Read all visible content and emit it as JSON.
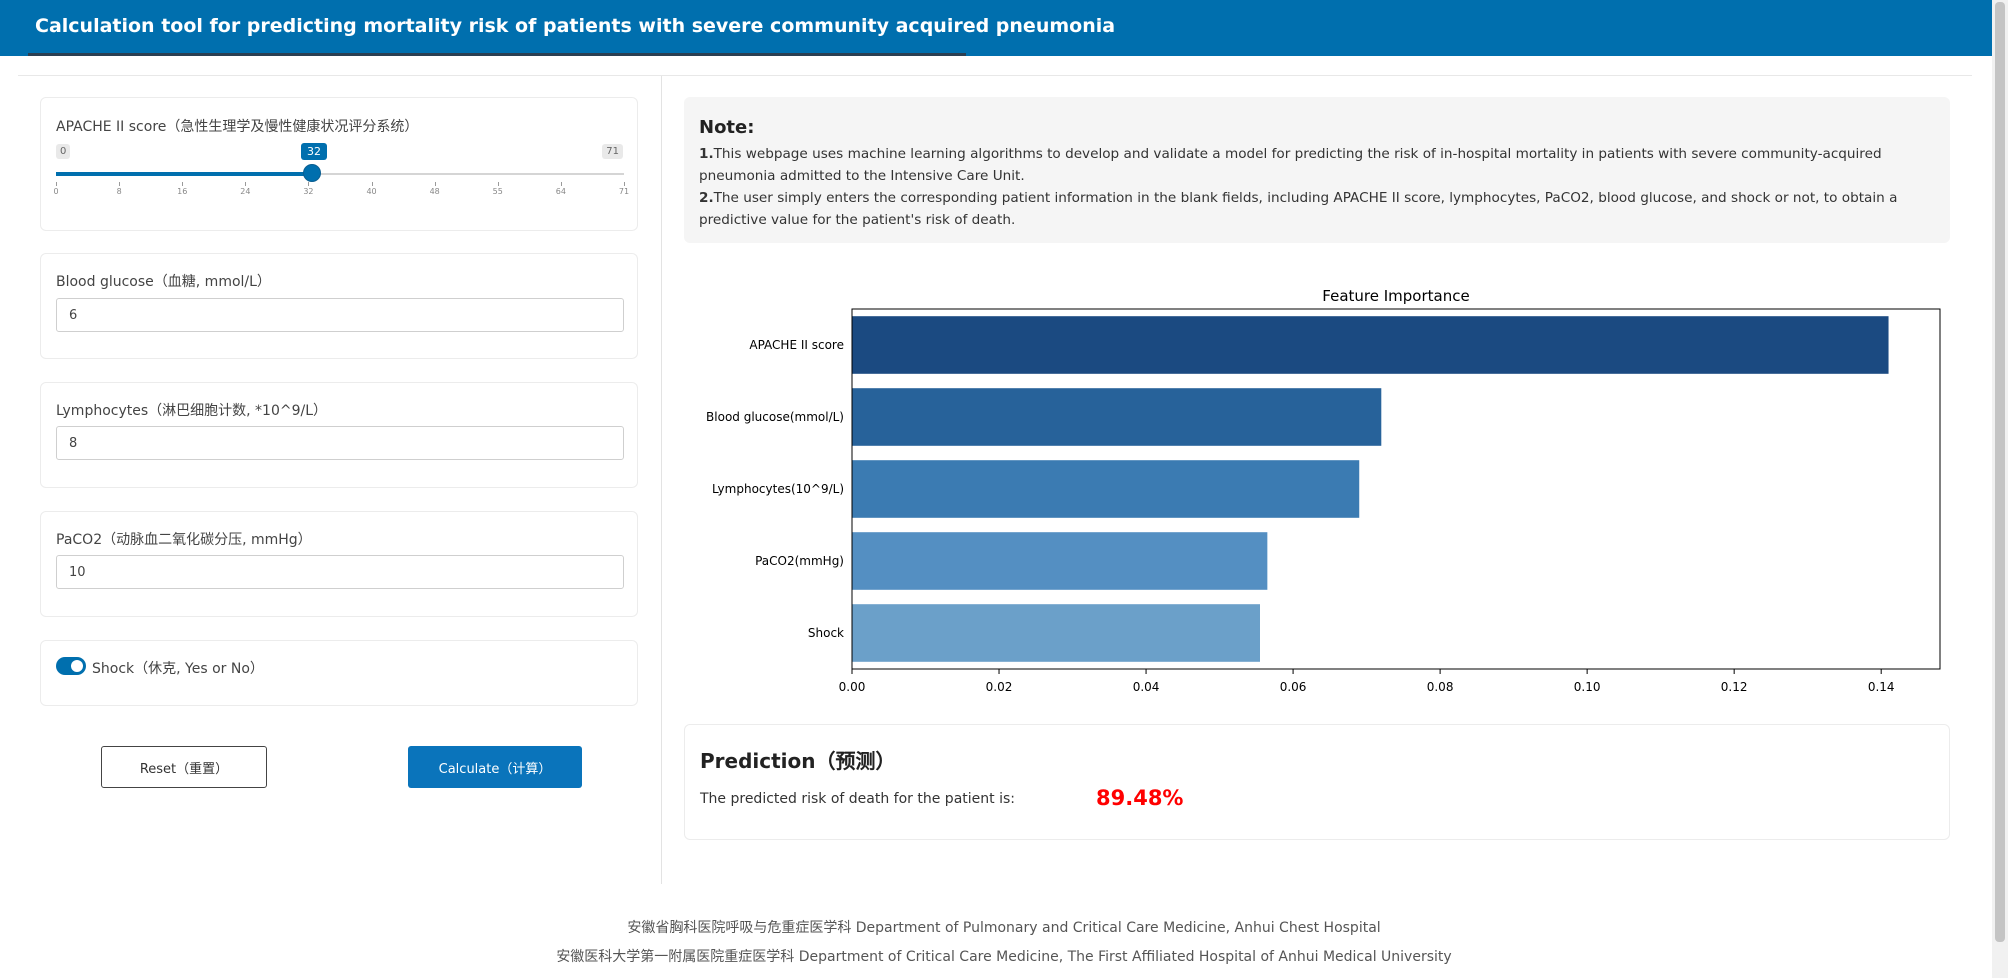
{
  "header": {
    "title": "Calculation tool for predicting mortality risk of patients with severe community acquired pneumonia"
  },
  "inputs": {
    "apache": {
      "label": "APACHE II score（急性生理学及慢性健康状况评分系统）",
      "min": 0,
      "max": 71,
      "value": 32,
      "ticks": [
        "0",
        "8",
        "16",
        "24",
        "32",
        "40",
        "48",
        "55",
        "64",
        "71"
      ]
    },
    "glucose": {
      "label": "Blood glucose（血糖, mmol/L）",
      "value": "6"
    },
    "lymphocytes": {
      "label": "Lymphocytes（淋巴细胞计数, *10^9/L）",
      "value": "8"
    },
    "paco2": {
      "label": "PaCO2（动脉血二氧化碳分压, mmHg）",
      "value": "10"
    },
    "shock": {
      "label": "Shock（休克, Yes or No）",
      "on": true
    }
  },
  "buttons": {
    "reset": "Reset（重置）",
    "calculate": "Calculate（计算）"
  },
  "note": {
    "title": "Note:",
    "p1_num": "1.",
    "p1": "This webpage uses machine learning algorithms to develop and validate a model for predicting the risk of in-hospital mortality in patients with severe community-acquired pneumonia admitted to the Intensive Care Unit.",
    "p2_num": "2.",
    "p2": "The user simply enters the corresponding patient information in the blank fields, including APACHE II score, lymphocytes, PaCO2, blood glucose, and shock or not, to obtain a predictive value for the patient's risk of death."
  },
  "chart_data": {
    "type": "bar",
    "orientation": "horizontal",
    "title": "Feature Importance",
    "categories": [
      "APACHE II score",
      "Blood glucose(mmol/L)",
      "Lymphocytes(10^9/L)",
      "PaCO2(mmHg)",
      "Shock"
    ],
    "values": [
      0.141,
      0.072,
      0.069,
      0.0565,
      0.0555
    ],
    "colors": [
      "#1b4a81",
      "#27629a",
      "#3b7bb2",
      "#548fc2",
      "#6ba0c9"
    ],
    "xlim": [
      0,
      0.148
    ],
    "xticks": [
      "0.00",
      "0.02",
      "0.04",
      "0.06",
      "0.08",
      "0.10",
      "0.12",
      "0.14"
    ],
    "xlabel": "",
    "ylabel": "",
    "grid": false
  },
  "prediction": {
    "title": "Prediction（预测）",
    "text": "The predicted risk of death for the patient is:",
    "value": "89.48%",
    "value_color": "#ff0000"
  },
  "footer": {
    "line1": "安徽省胸科医院呼吸与危重症医学科 Department of Pulmonary and Critical Care Medicine, Anhui Chest Hospital",
    "line2": "安徽医科大学第一附属医院重症医学科 Department of Critical Care Medicine, The First Affiliated Hospital of Anhui Medical University"
  }
}
